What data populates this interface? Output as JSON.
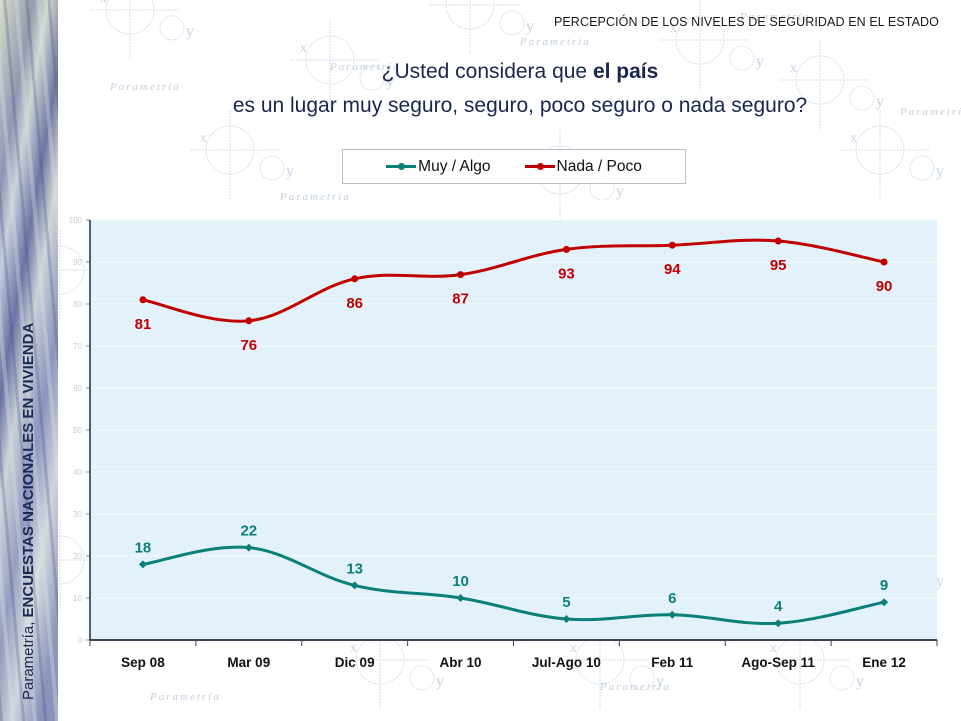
{
  "header": {
    "title": "PERCEPCIÓN DE LOS NIVELES DE SEGURIDAD EN EL ESTADO"
  },
  "side_caption": {
    "prefix": "Parametría, ",
    "bold": "ENCUESTAS NACIONALES EN VIVIENDA"
  },
  "question": {
    "line1_prefix": "¿Usted considera que ",
    "line1_bold": "el país",
    "line2": "es un lugar muy seguro, seguro, poco seguro o nada seguro?"
  },
  "background_watermark": "Parametría",
  "colors": {
    "muy_algo": "#0b807a",
    "nada_poco": "#c00000",
    "plot_bg": "#e4f3fb"
  },
  "chart_data": {
    "type": "line",
    "title": "¿Usted considera que el país es un lugar muy seguro, seguro, poco seguro o nada seguro?",
    "xlabel": "",
    "ylabel": "",
    "categories": [
      "Sep 08",
      "Mar 09",
      "Dic 09",
      "Abr 10",
      "Jul-Ago 10",
      "Feb 11",
      "Ago-Sep 11",
      "Ene 12"
    ],
    "series": [
      {
        "name": "Muy / Algo",
        "color": "#0b807a",
        "values": [
          18,
          22,
          13,
          10,
          5,
          6,
          4,
          9
        ]
      },
      {
        "name": "Nada / Poco",
        "color": "#c00000",
        "values": [
          81,
          76,
          86,
          87,
          93,
          94,
          95,
          90
        ]
      }
    ],
    "ylim": [
      0,
      100
    ],
    "yticks": [
      0,
      10,
      20,
      30,
      40,
      50,
      60,
      70,
      80,
      90,
      100
    ],
    "grid": true,
    "smooth": true,
    "legend": {
      "position": "top-center",
      "entries": [
        "Muy / Algo",
        "Nada / Poco"
      ]
    }
  }
}
